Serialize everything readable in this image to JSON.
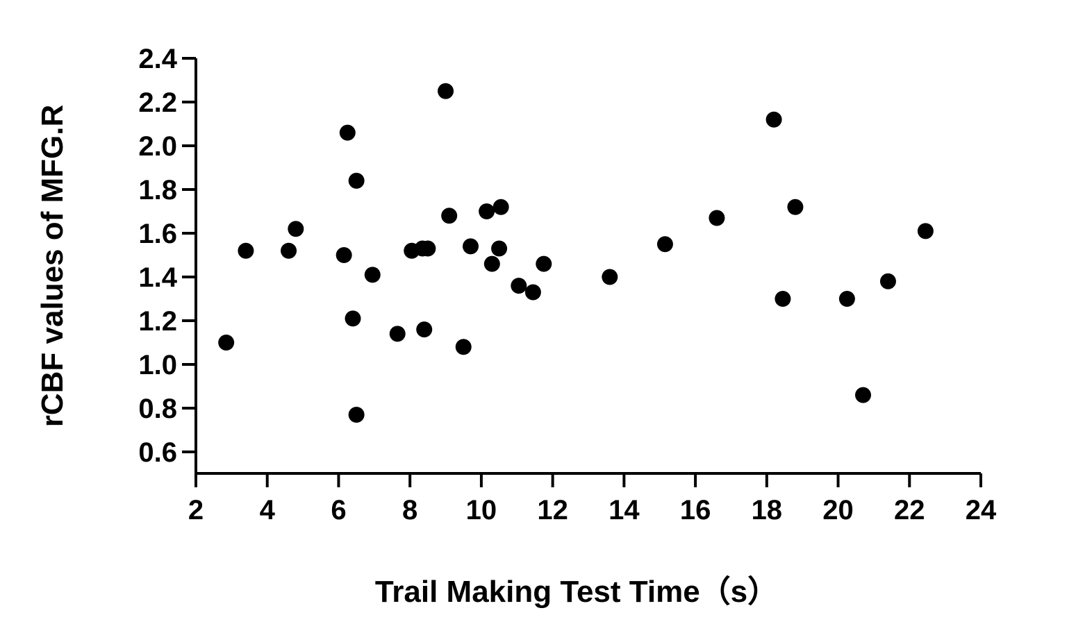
{
  "chart_data": {
    "type": "scatter",
    "title": "",
    "xlabel": "Trail Making Test Time（s）",
    "ylabel": "rCBF values of MFG.R",
    "xlim": [
      2,
      24
    ],
    "ylim": [
      0.5,
      2.4
    ],
    "x_ticks": [
      2,
      4,
      6,
      8,
      10,
      12,
      14,
      16,
      18,
      20,
      22,
      24
    ],
    "x_tick_labels": [
      "2",
      "4",
      "6",
      "8",
      "10",
      "12",
      "14",
      "16",
      "18",
      "20",
      "22",
      "24"
    ],
    "y_ticks": [
      0.6,
      0.8,
      1.0,
      1.2,
      1.4,
      1.6,
      1.8,
      2.0,
      2.2,
      2.4
    ],
    "y_tick_labels": [
      "0.6",
      "0.8",
      "1.0",
      "1.2",
      "1.4",
      "1.6",
      "1.8",
      "2.0",
      "2.2",
      "2.4"
    ],
    "grid": false,
    "legend": "none",
    "marker_color": "#000000",
    "points": [
      {
        "x": 2.85,
        "y": 1.1
      },
      {
        "x": 3.4,
        "y": 1.52
      },
      {
        "x": 4.6,
        "y": 1.52
      },
      {
        "x": 4.8,
        "y": 1.62
      },
      {
        "x": 6.15,
        "y": 1.5
      },
      {
        "x": 6.25,
        "y": 2.06
      },
      {
        "x": 6.4,
        "y": 1.21
      },
      {
        "x": 6.5,
        "y": 1.84
      },
      {
        "x": 6.5,
        "y": 0.77
      },
      {
        "x": 6.95,
        "y": 1.41
      },
      {
        "x": 7.65,
        "y": 1.14
      },
      {
        "x": 8.05,
        "y": 1.52
      },
      {
        "x": 8.35,
        "y": 1.53
      },
      {
        "x": 8.5,
        "y": 1.53
      },
      {
        "x": 8.4,
        "y": 1.16
      },
      {
        "x": 9.0,
        "y": 2.25
      },
      {
        "x": 9.1,
        "y": 1.68
      },
      {
        "x": 9.5,
        "y": 1.08
      },
      {
        "x": 9.7,
        "y": 1.54
      },
      {
        "x": 10.15,
        "y": 1.7
      },
      {
        "x": 10.3,
        "y": 1.46
      },
      {
        "x": 10.5,
        "y": 1.53
      },
      {
        "x": 10.55,
        "y": 1.72
      },
      {
        "x": 11.05,
        "y": 1.36
      },
      {
        "x": 11.45,
        "y": 1.33
      },
      {
        "x": 11.75,
        "y": 1.46
      },
      {
        "x": 13.6,
        "y": 1.4
      },
      {
        "x": 15.15,
        "y": 1.55
      },
      {
        "x": 16.6,
        "y": 1.67
      },
      {
        "x": 18.2,
        "y": 2.12
      },
      {
        "x": 18.45,
        "y": 1.3
      },
      {
        "x": 18.8,
        "y": 1.72
      },
      {
        "x": 20.25,
        "y": 1.3
      },
      {
        "x": 20.7,
        "y": 0.86
      },
      {
        "x": 21.4,
        "y": 1.38
      },
      {
        "x": 22.45,
        "y": 1.61
      }
    ]
  }
}
